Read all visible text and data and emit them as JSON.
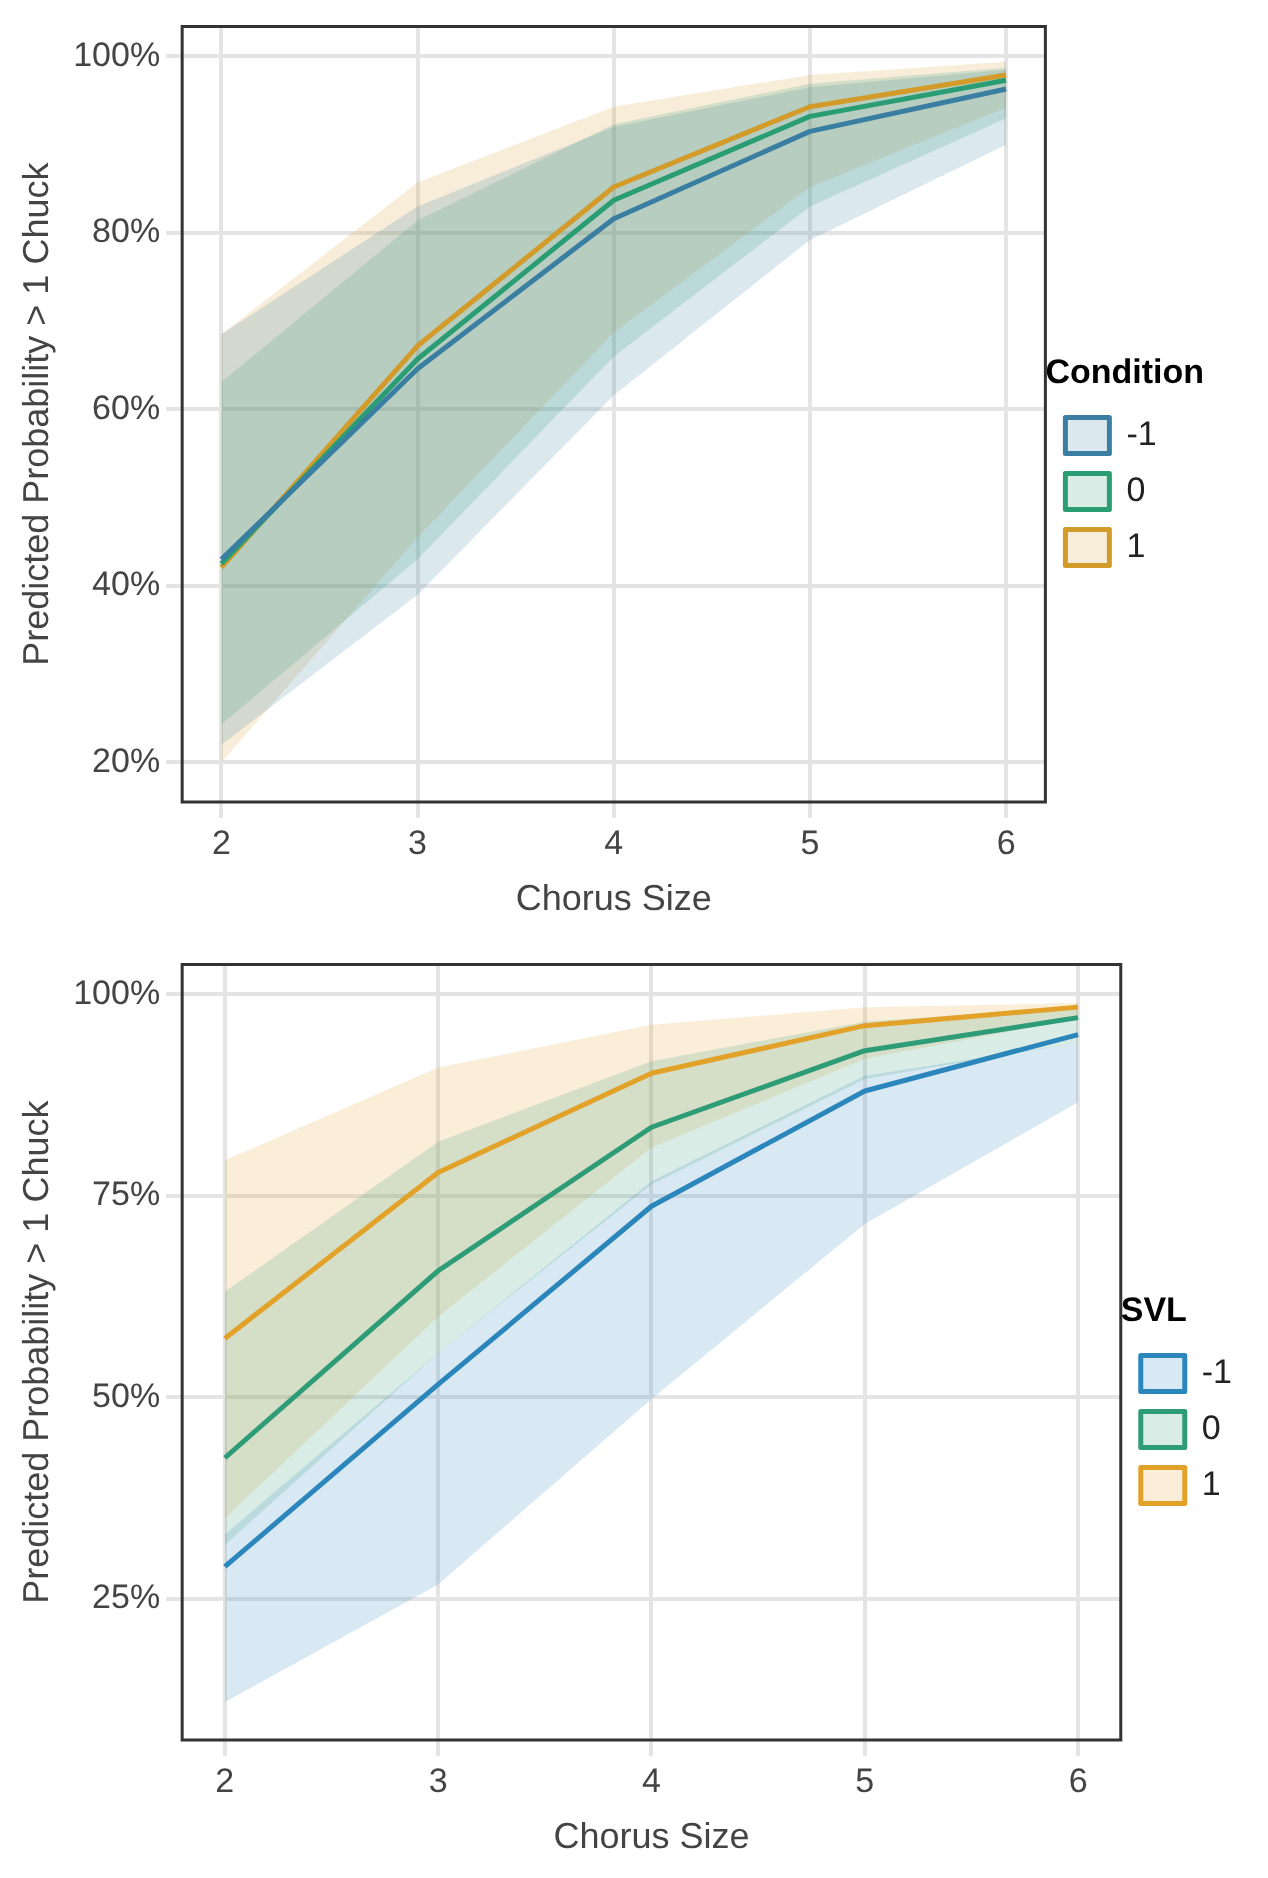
{
  "chart_data": [
    {
      "type": "line",
      "xlabel": "Chorus Size",
      "ylabel": "Predicted Probability > 1 Chuck",
      "legend_title": "Condition",
      "legend": "right",
      "grid": true,
      "x": [
        2,
        3,
        4,
        5,
        6
      ],
      "xlim": [
        1.8,
        6.2
      ],
      "xticks": [
        2,
        3,
        4,
        5,
        6
      ],
      "ylim": [
        15.5,
        103.4
      ],
      "yticks": [
        {
          "value": 20,
          "label": "20%"
        },
        {
          "value": 40,
          "label": "40%"
        },
        {
          "value": 60,
          "label": "60%"
        },
        {
          "value": 80,
          "label": "80%"
        },
        {
          "value": 100,
          "label": "100%"
        }
      ],
      "series": [
        {
          "name": "-1",
          "color": "#3a7ea1",
          "values": [
            43,
            64.6,
            81.6,
            91.5,
            96.3
          ],
          "lower": [
            22,
            39,
            61.6,
            79.2,
            90
          ],
          "upper": [
            68.5,
            83,
            92,
            96.5,
            98.5
          ]
        },
        {
          "name": "0",
          "color": "#2a9d74",
          "values": [
            42.5,
            65.7,
            83.7,
            93.2,
            97.3
          ],
          "lower": [
            24.3,
            43,
            66,
            83,
            93
          ],
          "upper": [
            63.1,
            81.4,
            92.3,
            96.9,
            98.7
          ]
        },
        {
          "name": "1",
          "color": "#d39b2a",
          "values": [
            42.1,
            67.2,
            85.2,
            94.3,
            97.9
          ],
          "lower": [
            20,
            45.5,
            68.7,
            85.2,
            94.2
          ],
          "upper": [
            68.5,
            85.7,
            94.3,
            97.9,
            99.4
          ]
        }
      ]
    },
    {
      "type": "line",
      "xlabel": "Chorus Size",
      "ylabel": "Predicted Probability > 1 Chuck",
      "legend_title": "SVL",
      "legend": "right",
      "grid": true,
      "x": [
        2,
        3,
        4,
        5,
        6
      ],
      "xlim": [
        1.8,
        6.2
      ],
      "xticks": [
        2,
        3,
        4,
        5,
        6
      ],
      "ylim": [
        7.5,
        103.7
      ],
      "yticks": [
        {
          "value": 25,
          "label": "25%"
        },
        {
          "value": 50,
          "label": "50%"
        },
        {
          "value": 75,
          "label": "75%"
        },
        {
          "value": 100,
          "label": "100%"
        }
      ],
      "series": [
        {
          "name": "-1",
          "color": "#2b86bb",
          "values": [
            29,
            51.6,
            73.7,
            88,
            95
          ],
          "lower": [
            12.2,
            26.8,
            49.8,
            71.5,
            86.6
          ],
          "upper": [
            33,
            55.5,
            76.8,
            89.9,
            94
          ]
        },
        {
          "name": "0",
          "color": "#2e9c76",
          "values": [
            42.5,
            65.7,
            83.5,
            93,
            97.1
          ],
          "lower": [
            31.7,
            55.5,
            76.4,
            89.5,
            94
          ],
          "upper": [
            63.1,
            81.7,
            91.7,
            96.6,
            98.4
          ]
        },
        {
          "name": "1",
          "color": "#e2a22a",
          "values": [
            57.3,
            77.9,
            90.2,
            96.1,
            98.4
          ],
          "lower": [
            35,
            60,
            81,
            92,
            97
          ],
          "upper": [
            79.4,
            90.9,
            96.2,
            98.4,
            98.9
          ]
        }
      ]
    }
  ]
}
